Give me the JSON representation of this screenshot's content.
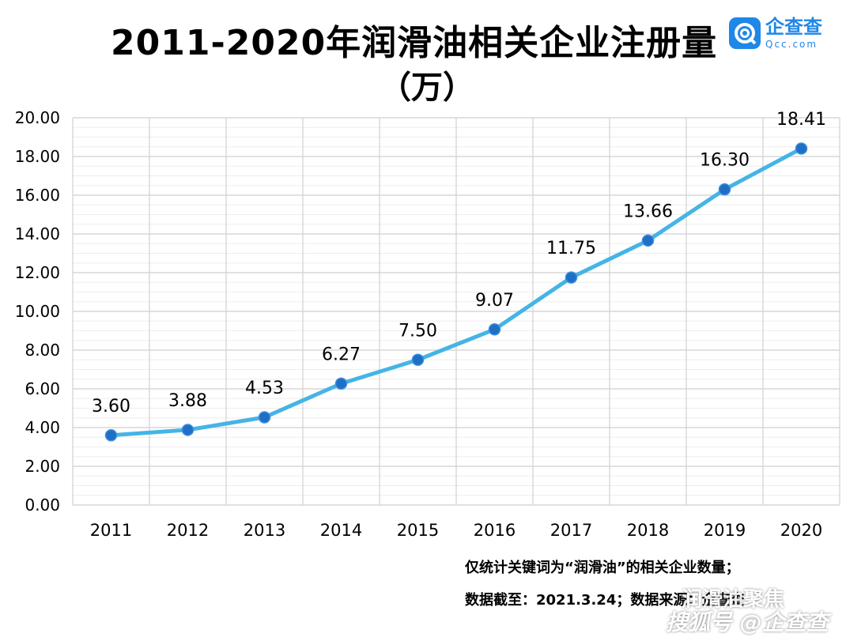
{
  "title": "2011-2020年润滑油相关企业注册量",
  "subtitle": "（万）",
  "logo": {
    "name": "企查查",
    "domain": "Qcc.com",
    "icon": "qcc-logo-icon",
    "color": "#1f87e8"
  },
  "notes": {
    "line1": "仅统计关键词为“润滑油”的相关企业数量；",
    "line2": "数据截至：2021.3.24；数据来源：企查查"
  },
  "watermark": {
    "line1": "润滑油聚焦",
    "line2": "搜狐号 @企查查"
  },
  "colors": {
    "line": "#45b4e6",
    "marker": "#1f6fc4",
    "grid": "#d9d9d9"
  },
  "chart_data": {
    "type": "line",
    "title": "2011-2020年润滑油相关企业注册量",
    "subtitle": "（万）",
    "xlabel": "",
    "ylabel": "",
    "categories": [
      "2011",
      "2012",
      "2013",
      "2014",
      "2015",
      "2016",
      "2017",
      "2018",
      "2019",
      "2020"
    ],
    "values": [
      3.6,
      3.88,
      4.53,
      6.27,
      7.5,
      9.07,
      11.75,
      13.66,
      16.3,
      18.41
    ],
    "data_labels": [
      "3.60",
      "3.88",
      "4.53",
      "6.27",
      "7.50",
      "9.07",
      "11.75",
      "13.66",
      "16.30",
      "18.41"
    ],
    "ylim": [
      0,
      20
    ],
    "yticks": [
      "0.00",
      "2.00",
      "4.00",
      "6.00",
      "8.00",
      "10.00",
      "12.00",
      "14.00",
      "16.00",
      "18.00",
      "20.00"
    ],
    "grid": true,
    "legend": "none"
  }
}
